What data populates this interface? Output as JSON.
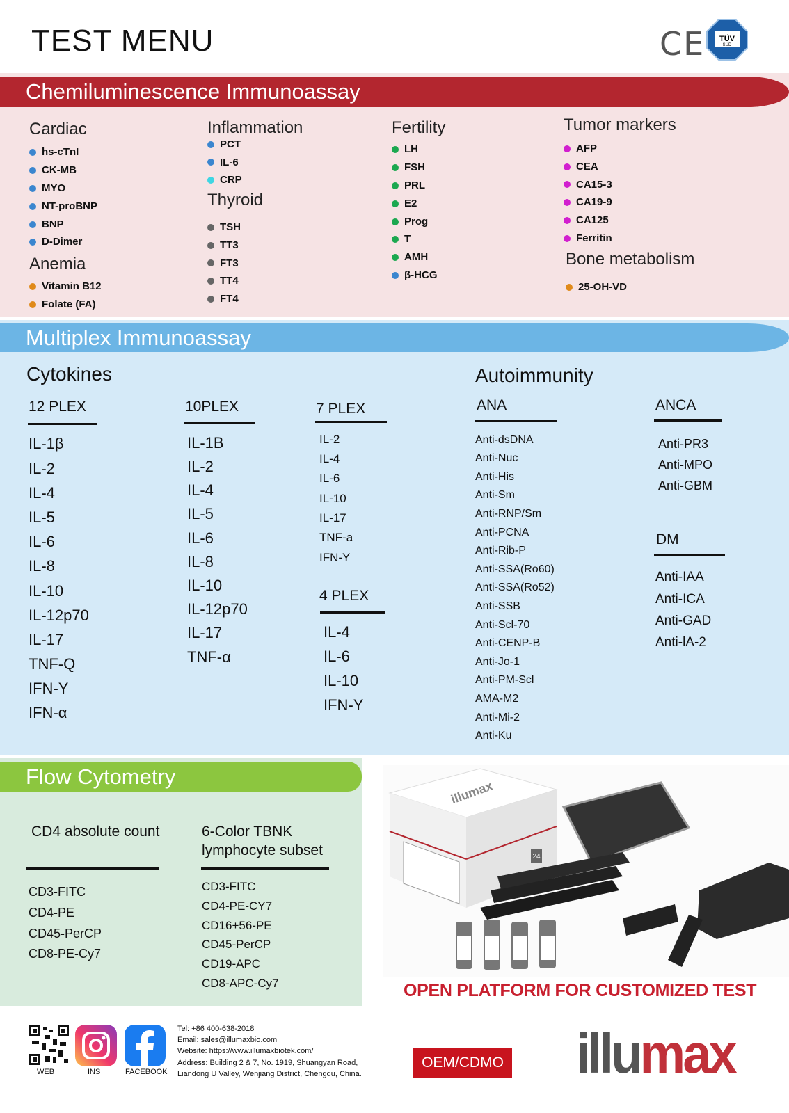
{
  "header": {
    "title": "TEST MENU",
    "cert_logos": [
      "CE",
      "TÜV SÜD"
    ]
  },
  "colors": {
    "chemi_banner": "#b3262f",
    "chemi_bg": "#f6e3e4",
    "multi_banner": "#6cb5e5",
    "multi_bg": "#d5eaf8",
    "flow_banner": "#8cc63f",
    "flow_bg": "#d8ebdd",
    "accent_red": "#c8202f",
    "blue": "#3b86cf",
    "cyan": "#3fd6e3",
    "gray": "#666666",
    "green": "#1ca850",
    "magenta": "#d21fcf",
    "orange": "#e08a1a"
  },
  "chemi": {
    "title": "Chemiluminescence Immunoassay",
    "groups": [
      {
        "heading": "Cardiac",
        "items": [
          {
            "t": "hs-cTnI",
            "c": "blue"
          },
          {
            "t": "CK-MB",
            "c": "blue"
          },
          {
            "t": "MYO",
            "c": "blue"
          },
          {
            "t": "NT-proBNP",
            "c": "blue"
          },
          {
            "t": "BNP",
            "c": "blue"
          },
          {
            "t": "D-Dimer",
            "c": "blue"
          }
        ]
      },
      {
        "heading": "Anemia",
        "items": [
          {
            "t": "Vitamin B12",
            "c": "orange"
          },
          {
            "t": "Folate (FA)",
            "c": "orange"
          }
        ]
      },
      {
        "heading": "Inflammation",
        "items": [
          {
            "t": "PCT",
            "c": "blue"
          },
          {
            "t": "IL-6",
            "c": "blue"
          },
          {
            "t": "CRP",
            "c": "cyan"
          }
        ]
      },
      {
        "heading": "Thyroid",
        "items": [
          {
            "t": "TSH",
            "c": "gray"
          },
          {
            "t": "TT3",
            "c": "gray"
          },
          {
            "t": "FT3",
            "c": "gray"
          },
          {
            "t": "TT4",
            "c": "gray"
          },
          {
            "t": "FT4",
            "c": "gray"
          }
        ]
      },
      {
        "heading": "Fertility",
        "items": [
          {
            "t": "LH",
            "c": "green"
          },
          {
            "t": "FSH",
            "c": "green"
          },
          {
            "t": "PRL",
            "c": "green"
          },
          {
            "t": "E2",
            "c": "green"
          },
          {
            "t": "Prog",
            "c": "green"
          },
          {
            "t": "T",
            "c": "green"
          },
          {
            "t": "AMH",
            "c": "green"
          },
          {
            "t": "β-HCG",
            "c": "blue"
          }
        ]
      },
      {
        "heading": "Tumor markers",
        "items": [
          {
            "t": "AFP",
            "c": "magenta"
          },
          {
            "t": "CEA",
            "c": "magenta"
          },
          {
            "t": "CA15-3",
            "c": "magenta"
          },
          {
            "t": "CA19-9",
            "c": "magenta"
          },
          {
            "t": "CA125",
            "c": "magenta"
          },
          {
            "t": "Ferritin",
            "c": "magenta"
          }
        ]
      },
      {
        "heading": "Bone metabolism",
        "items": [
          {
            "t": "25-OH-VD",
            "c": "orange"
          }
        ]
      }
    ]
  },
  "multiplex": {
    "title": "Multiplex Immunoassay",
    "cytokines_heading": "Cytokines",
    "autoimmunity_heading": "Autoimmunity",
    "panels": [
      {
        "heading": "12 PLEX",
        "items": [
          "IL-1β",
          "IL-2",
          "IL-4",
          "IL-5",
          "IL-6",
          "IL-8",
          "IL-10",
          "IL-12p70",
          "IL-17",
          "TNF-Q",
          "IFN-Y",
          "IFN-α"
        ]
      },
      {
        "heading": "10PLEX",
        "items": [
          "IL-1B",
          "IL-2",
          "IL-4",
          "IL-5",
          "IL-6",
          "IL-8",
          "IL-10",
          "IL-12p70",
          "IL-17",
          "TNF-α"
        ]
      },
      {
        "heading": "7 PLEX",
        "items": [
          "IL-2",
          "IL-4",
          "IL-6",
          "IL-10",
          "IL-17",
          "TNF-a",
          "IFN-Y"
        ]
      },
      {
        "heading": "4 PLEX",
        "items": [
          "IL-4",
          "IL-6",
          "IL-10",
          "IFN-Y"
        ]
      },
      {
        "heading": "ANA",
        "items": [
          "Anti-dsDNA",
          "Anti-Nuc",
          "Anti-His",
          "Anti-Sm",
          "Anti-RNP/Sm",
          "Anti-PCNA",
          "Anti-Rib-P",
          "Anti-SSA(Ro60)",
          "Anti-SSA(Ro52)",
          "Anti-SSB",
          "Anti-Scl-70",
          "Anti-CENP-B",
          "Anti-Jo-1",
          "Anti-PM-Scl",
          "AMA-M2",
          "Anti-Mi-2",
          "Anti-Ku"
        ]
      },
      {
        "heading": "ANCA",
        "items": [
          "Anti-PR3",
          "Anti-MPO",
          "Anti-GBM"
        ]
      },
      {
        "heading": "DM",
        "items": [
          "Anti-IAA",
          "Anti-ICA",
          "Anti-GAD",
          "Anti-lA-2"
        ]
      }
    ]
  },
  "flow": {
    "title": "Flow Cytometry",
    "panels": [
      {
        "heading": "CD4 absolute count",
        "items": [
          "CD3-FITC",
          "CD4-PE",
          "CD45-PerCP",
          "CD8-PE-Cy7"
        ]
      },
      {
        "heading": "6-Color TBNK\nlymphocyte subset",
        "items": [
          "CD3-FITC",
          "CD4-PE-CY7",
          "CD16+56-PE",
          "CD45-PerCP",
          "CD19-APC",
          "CD8-APC-Cy7"
        ]
      }
    ]
  },
  "product": {
    "box_brand": "illumax",
    "box_count": "24",
    "tagline": "OPEN PLATFORM FOR CUSTOMIZED TEST"
  },
  "footer": {
    "social": [
      {
        "label": "WEB",
        "icon": "qr-code-icon"
      },
      {
        "label": "INS",
        "icon": "instagram-icon"
      },
      {
        "label": "FACEBOOK",
        "icon": "facebook-icon"
      }
    ],
    "contact": [
      "Tel: +86 400-638-2018",
      "Email: sales@illumaxbio.com",
      "Website:  https://www.illumaxbiotek.com/",
      "Address:  Building 2 & 7, No. 1919, Shuangyan Road,",
      "Liandong U Valley, Wenjiang District, Chengdu, China."
    ],
    "oem_label": "OEM/CDMO",
    "logo": {
      "part1": "illu",
      "part2": "max"
    }
  }
}
